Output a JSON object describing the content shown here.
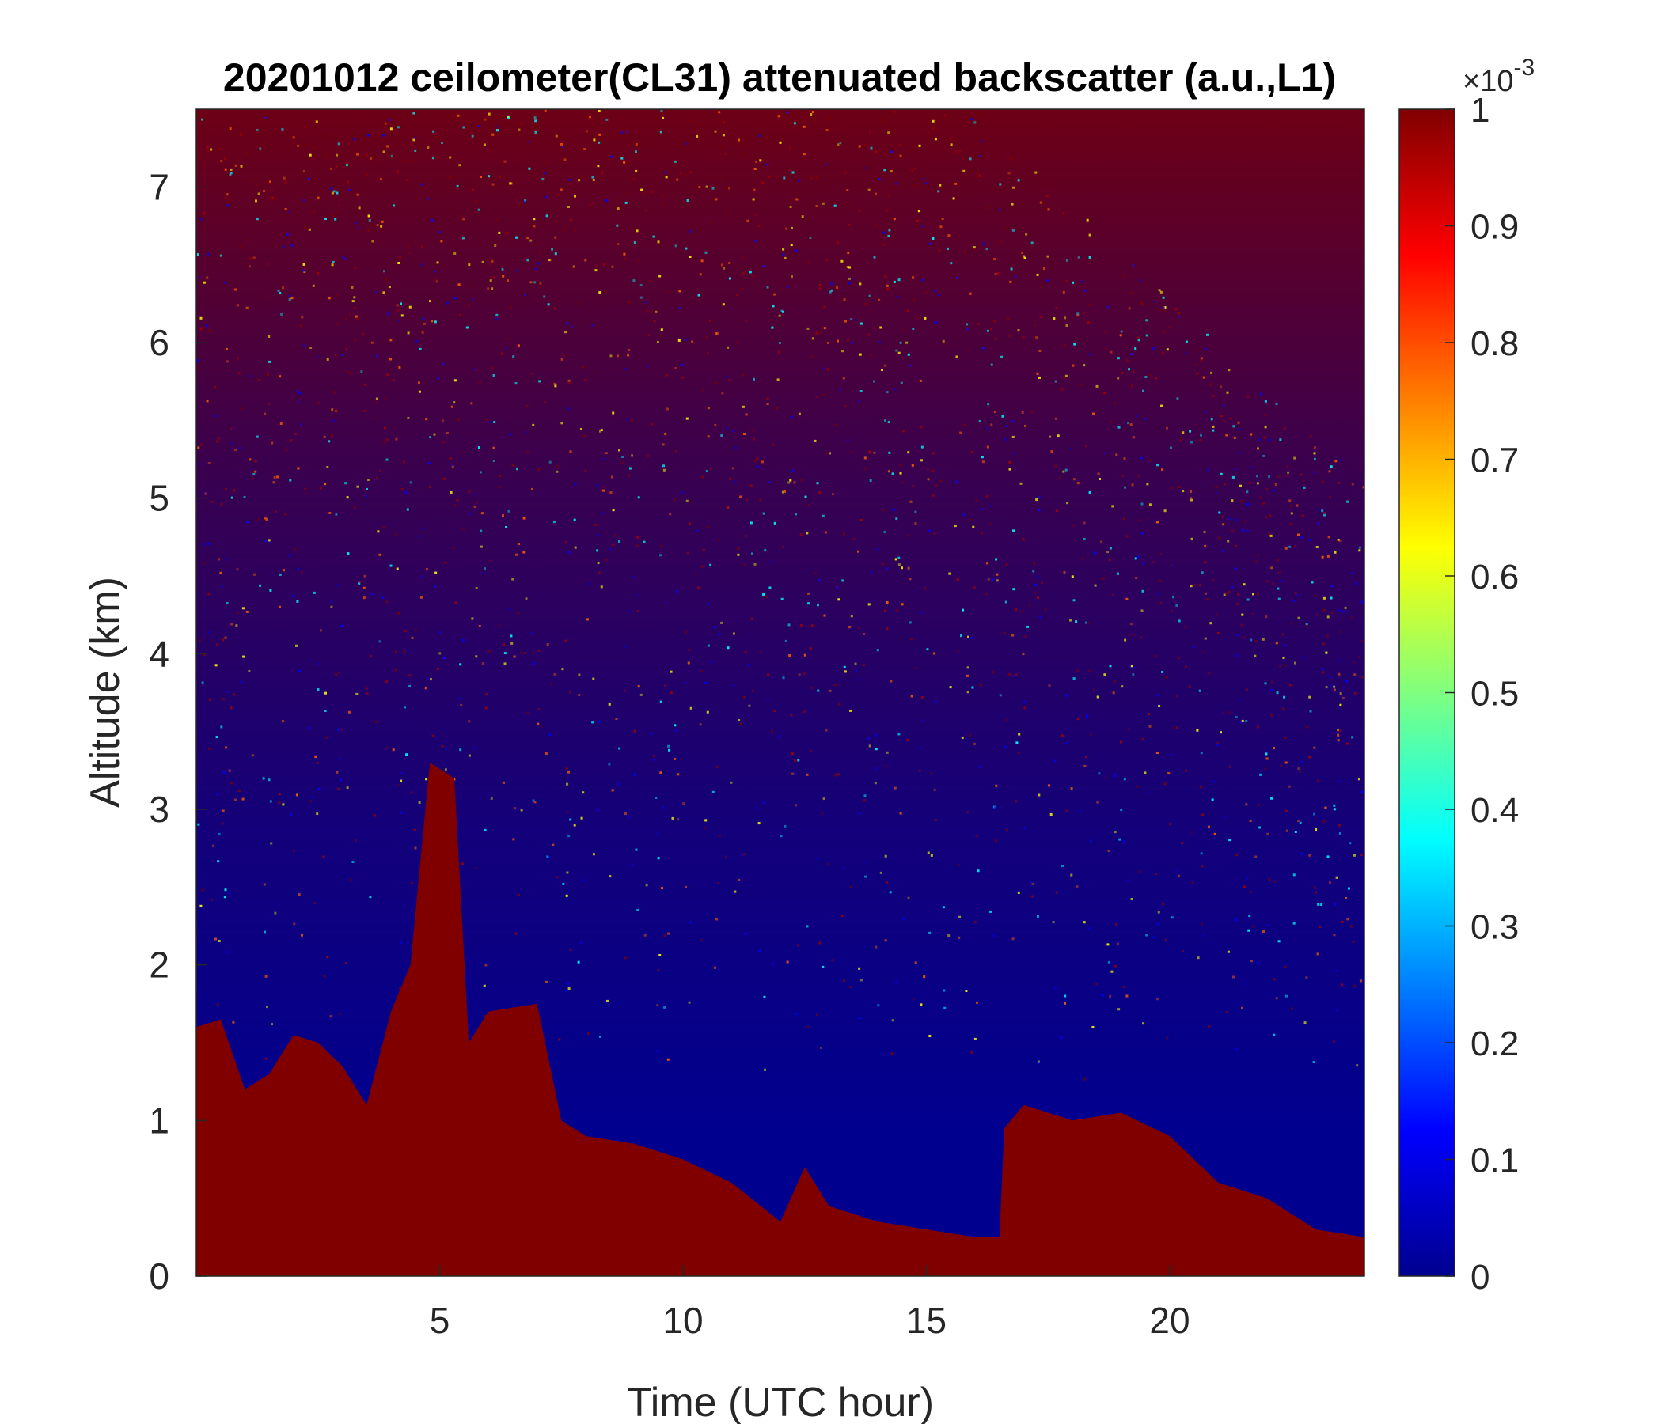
{
  "figure": {
    "title": "20201012 ceilometer(CL31) attenuated backscatter (a.u.,L1)"
  },
  "chart_data": {
    "type": "heatmap",
    "title": "20201012 ceilometer(CL31) attenuated backscatter (a.u.,L1)",
    "xlabel": "Time (UTC hour)",
    "ylabel": "Altitude (km)",
    "xlim": [
      0,
      24
    ],
    "ylim": [
      0,
      7.5
    ],
    "x_ticks": [
      5,
      10,
      15,
      20
    ],
    "y_ticks": [
      0,
      1,
      2,
      3,
      4,
      5,
      6,
      7
    ],
    "colormap": "jet",
    "colorbar": {
      "range": [
        0,
        1
      ],
      "ticks": [
        0,
        0.1,
        0.2,
        0.3,
        0.4,
        0.5,
        0.6,
        0.7,
        0.8,
        0.9,
        1
      ],
      "multiplier_base": "10",
      "multiplier_exponent": "-3",
      "multiplier_prefix": "×"
    },
    "boundary_layer_top_km": [
      {
        "time": 0.0,
        "top": 1.6
      },
      {
        "time": 0.5,
        "top": 1.65
      },
      {
        "time": 1.0,
        "top": 1.2
      },
      {
        "time": 1.5,
        "top": 1.3
      },
      {
        "time": 2.0,
        "top": 1.55
      },
      {
        "time": 2.5,
        "top": 1.5
      },
      {
        "time": 3.0,
        "top": 1.35
      },
      {
        "time": 3.5,
        "top": 1.1
      },
      {
        "time": 4.0,
        "top": 1.7
      },
      {
        "time": 4.4,
        "top": 2.0
      },
      {
        "time": 4.8,
        "top": 3.3
      },
      {
        "time": 5.3,
        "top": 3.2
      },
      {
        "time": 5.6,
        "top": 1.5
      },
      {
        "time": 6.0,
        "top": 1.7
      },
      {
        "time": 7.0,
        "top": 1.75
      },
      {
        "time": 7.5,
        "top": 1.0
      },
      {
        "time": 8.0,
        "top": 0.9
      },
      {
        "time": 9.0,
        "top": 0.85
      },
      {
        "time": 10.0,
        "top": 0.75
      },
      {
        "time": 11.0,
        "top": 0.6
      },
      {
        "time": 12.0,
        "top": 0.35
      },
      {
        "time": 12.5,
        "top": 0.7
      },
      {
        "time": 13.0,
        "top": 0.45
      },
      {
        "time": 14.0,
        "top": 0.35
      },
      {
        "time": 15.0,
        "top": 0.3
      },
      {
        "time": 16.0,
        "top": 0.25
      },
      {
        "time": 16.5,
        "top": 0.25
      },
      {
        "time": 16.6,
        "top": 0.95
      },
      {
        "time": 17.0,
        "top": 1.1
      },
      {
        "time": 18.0,
        "top": 1.0
      },
      {
        "time": 19.0,
        "top": 1.05
      },
      {
        "time": 20.0,
        "top": 0.9
      },
      {
        "time": 21.0,
        "top": 0.6
      },
      {
        "time": 22.0,
        "top": 0.5
      },
      {
        "time": 23.0,
        "top": 0.3
      },
      {
        "time": 24.0,
        "top": 0.25
      }
    ],
    "value_in_boundary_layer": 1.0,
    "value_clear_air_above_boundary_layer": 0.0,
    "value_upper_troposphere_noise": "mixed 0 to 1 (noise)"
  }
}
